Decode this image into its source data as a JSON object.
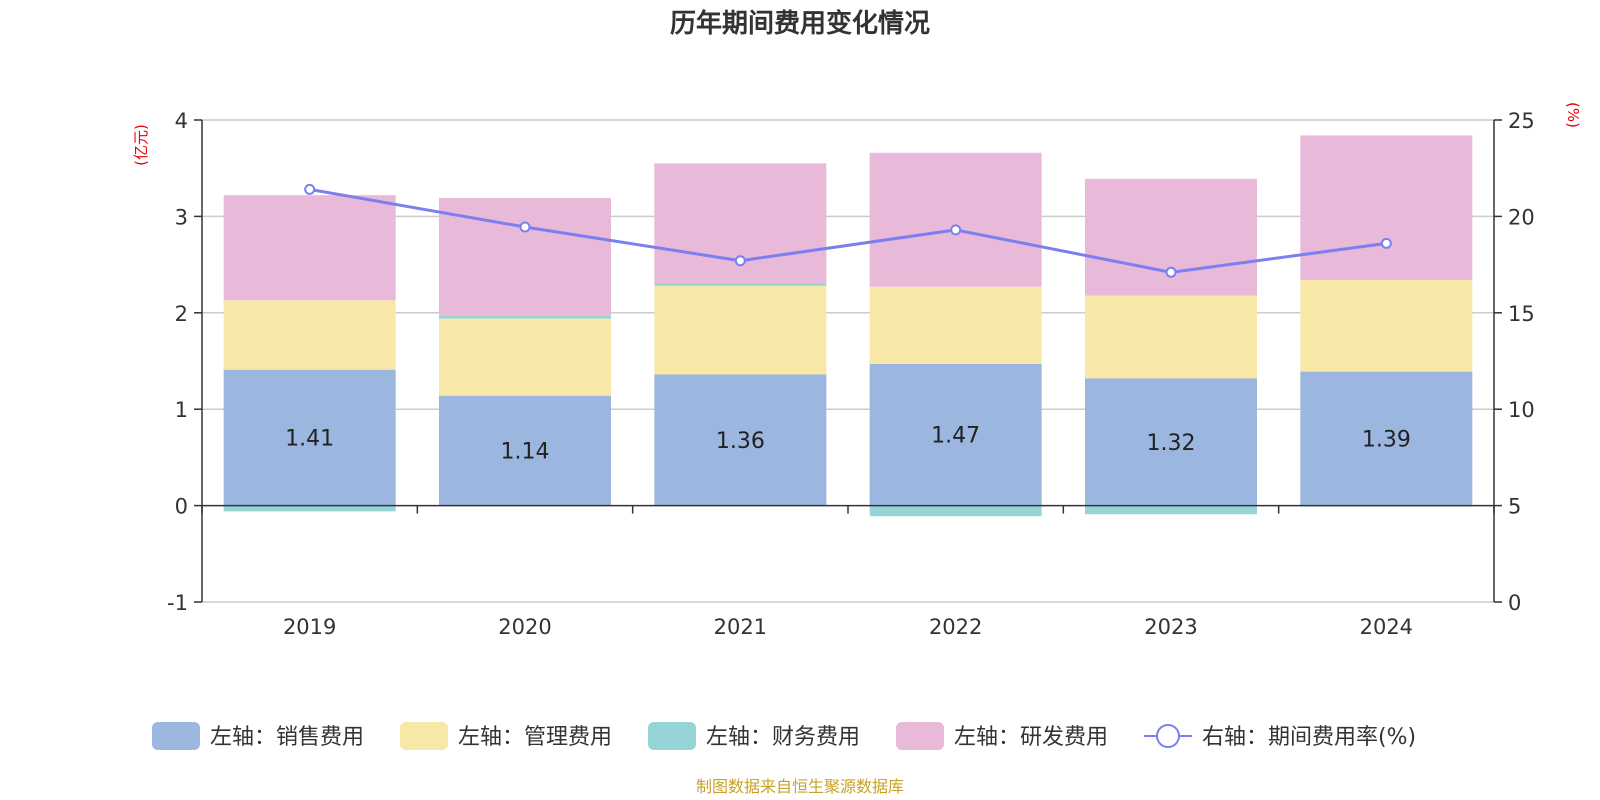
{
  "chart_data": {
    "type": "bar",
    "stacked": true,
    "title": "历年期间费用变化情况",
    "categories": [
      "2019",
      "2020",
      "2021",
      "2022",
      "2023",
      "2024"
    ],
    "left_axis": {
      "unit": "(亿元)",
      "ylim": [
        -1,
        4
      ],
      "ticks": [
        -1,
        0,
        1,
        2,
        3,
        4
      ]
    },
    "right_axis": {
      "unit": "(%)",
      "ylim": [
        0,
        25
      ],
      "ticks": [
        0,
        5,
        10,
        15,
        20,
        25
      ]
    },
    "series": [
      {
        "name": "左轴：销售费用",
        "type": "bar",
        "axis": "left",
        "color": "#9bb7e0",
        "values": [
          1.41,
          1.14,
          1.36,
          1.47,
          1.32,
          1.39
        ],
        "labels": [
          "1.41",
          "1.14",
          "1.36",
          "1.47",
          "1.32",
          "1.39"
        ]
      },
      {
        "name": "左轴：管理费用",
        "type": "bar",
        "axis": "left",
        "color": "#f7e8a8",
        "values": [
          0.72,
          0.8,
          0.92,
          0.8,
          0.86,
          0.95
        ]
      },
      {
        "name": "左轴：财务费用",
        "type": "bar",
        "axis": "left",
        "color": "#96d5d6",
        "values": [
          -0.06,
          0.03,
          0.03,
          -0.11,
          -0.09,
          -0.01
        ]
      },
      {
        "name": "左轴：研发费用",
        "type": "bar",
        "axis": "left",
        "color": "#e8b9d9",
        "values": [
          1.09,
          1.22,
          1.24,
          1.39,
          1.21,
          1.5
        ]
      },
      {
        "name": "右轴：期间费用率(%)",
        "type": "line",
        "axis": "right",
        "color": "#7b7ff0",
        "values": [
          21.4,
          19.45,
          17.7,
          19.3,
          17.1,
          18.6
        ]
      }
    ],
    "source_note": "制图数据来自恒生聚源数据库"
  }
}
